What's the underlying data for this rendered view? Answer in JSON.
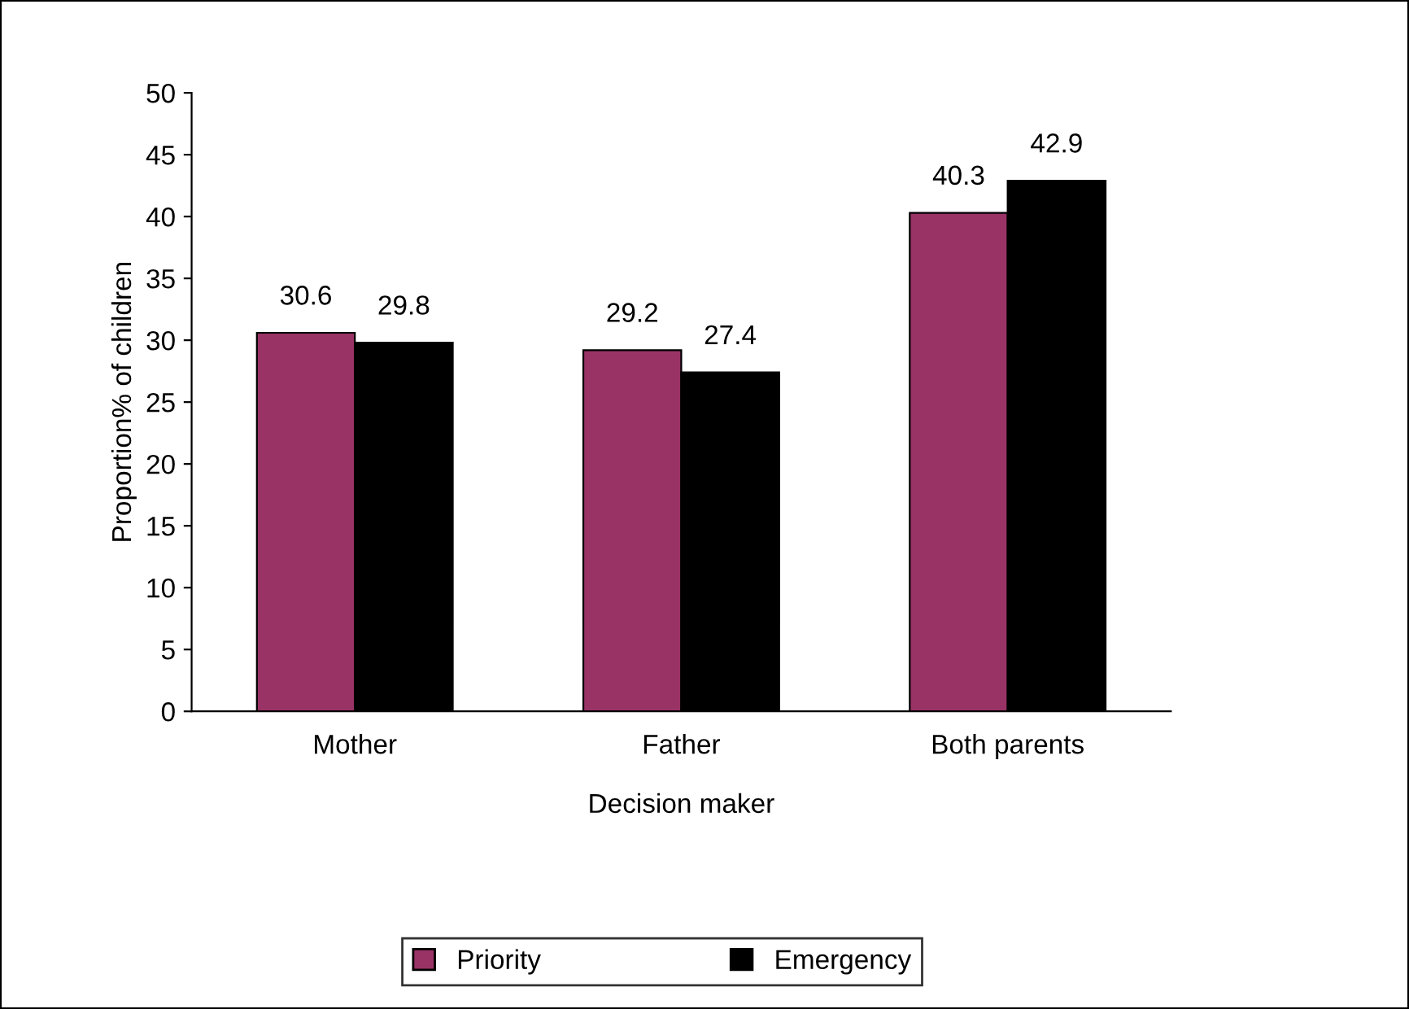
{
  "chart_data": {
    "type": "bar",
    "xlabel": "Decision maker",
    "ylabel": "Proportion% of children",
    "categories": [
      "Mother",
      "Father",
      "Both parents"
    ],
    "series": [
      {
        "name": "Priority",
        "color": "#993366",
        "values": [
          30.6,
          29.2,
          40.3
        ]
      },
      {
        "name": "Emergency",
        "color": "#000000",
        "values": [
          29.8,
          27.4,
          42.9
        ]
      }
    ],
    "ylim": [
      0,
      50
    ],
    "yticks": [
      0,
      5,
      10,
      15,
      20,
      25,
      30,
      35,
      40,
      45,
      50
    ],
    "data_labels": true,
    "legend": "bottom",
    "grid": false
  }
}
